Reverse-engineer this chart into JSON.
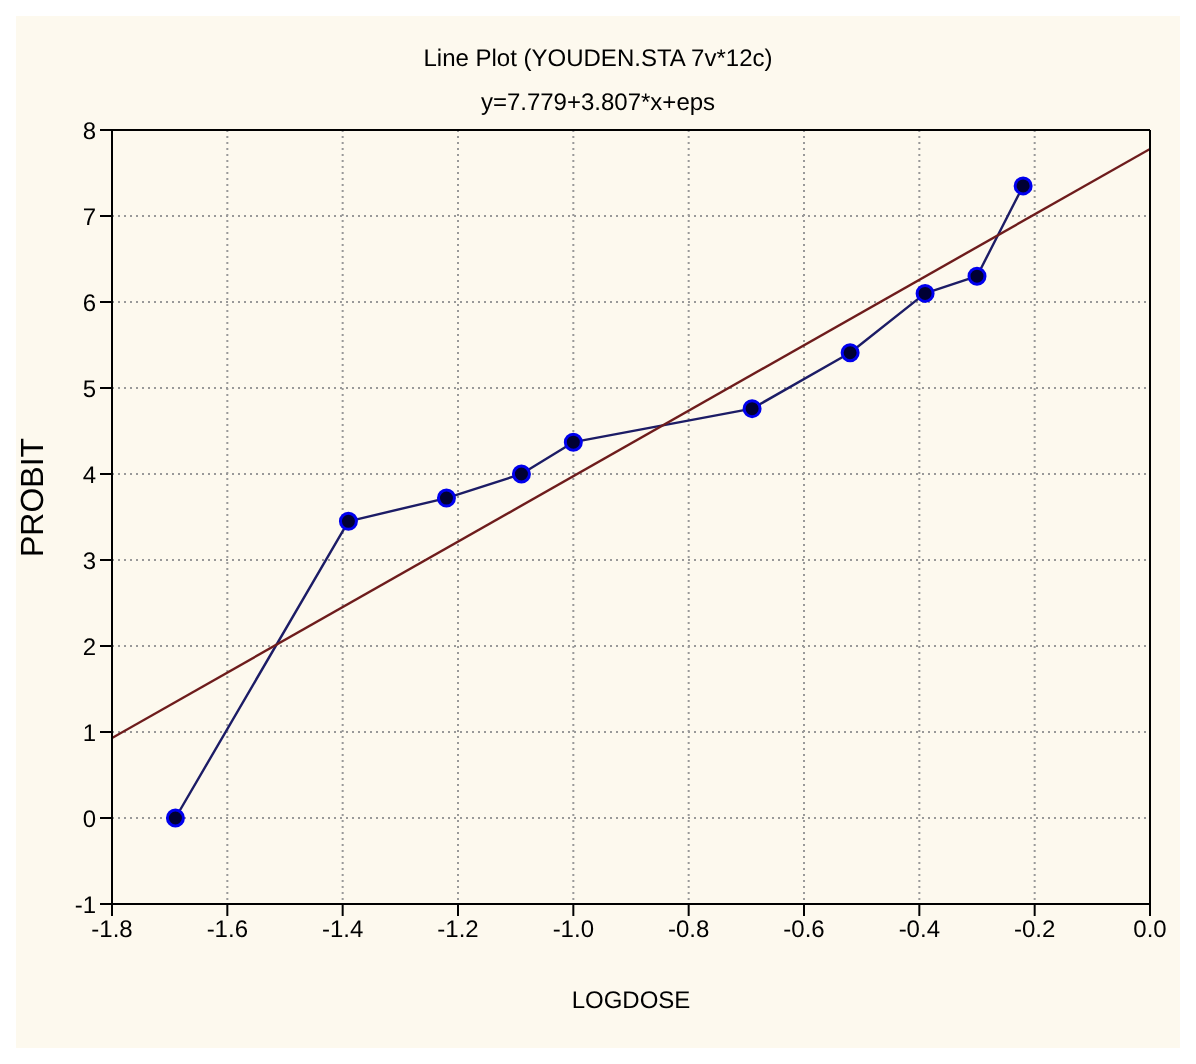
{
  "chart_data": {
    "type": "line",
    "title": "Line Plot (YOUDEN.STA 7v*12c)",
    "subtitle": "y=7.779+3.807*x+eps",
    "xlabel": "LOGDOSE",
    "ylabel": "PROBIT",
    "x": [
      -1.69,
      -1.39,
      -1.22,
      -1.09,
      -1.0,
      -0.69,
      -0.52,
      -0.39,
      -0.3,
      -0.22
    ],
    "series": [
      {
        "color": "#1c1c66",
        "values": [
          0.0,
          3.45,
          3.72,
          4.0,
          4.37,
          4.76,
          5.41,
          6.1,
          6.3,
          7.35
        ],
        "marker": "circle"
      },
      {
        "type": "line",
        "color": "#6e1c1c",
        "x": [
          -1.8,
          0.0
        ],
        "values": [
          0.93,
          7.78
        ],
        "marker": "none"
      }
    ],
    "xlim": [
      -1.8,
      0.0
    ],
    "xticks": [
      {
        "value": -1.8,
        "label": "-1.8"
      },
      {
        "value": -1.6,
        "label": "-1.6"
      },
      {
        "value": -1.4,
        "label": "-1.4"
      },
      {
        "value": -1.2,
        "label": "-1.2"
      },
      {
        "value": -1.0,
        "label": "-1.0"
      },
      {
        "value": -0.8,
        "label": "-0.8"
      },
      {
        "value": -0.6,
        "label": "-0.6"
      },
      {
        "value": -0.4,
        "label": "-0.4"
      },
      {
        "value": -0.2,
        "label": "-0.2"
      },
      {
        "value": 0.0,
        "label": "0.0"
      }
    ],
    "ylim": [
      -1,
      8
    ],
    "yticks": [
      -1,
      0,
      1,
      2,
      3,
      4,
      5,
      6,
      7,
      8
    ],
    "grid": true
  }
}
